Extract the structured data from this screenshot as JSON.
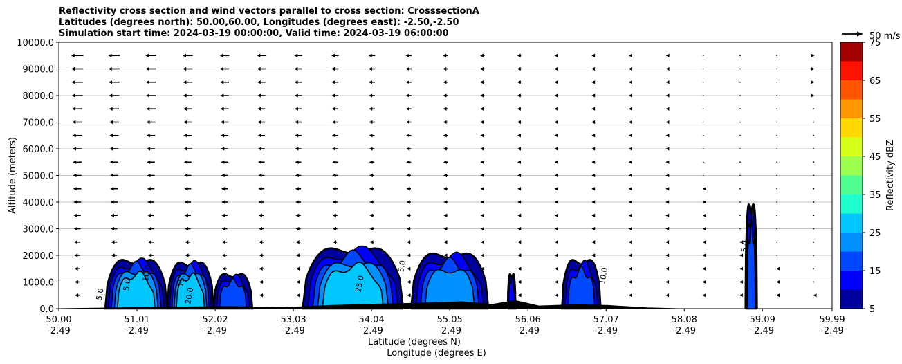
{
  "chart_data": {
    "type": "contourf",
    "title_lines": [
      "Reflectivity cross section and wind vectors parallel to cross section: CrosssectionA",
      "Latitudes (degrees north): 50.00,60.00, Longitudes (degrees east): -2.50,-2.50",
      "Simulation start time: 2024-03-19 00:00:00, Valid time: 2024-03-19 06:00:00"
    ],
    "xlabel_lat": "Latitude (degrees N)",
    "xlabel_lon": "Longitude (degrees E)",
    "ylabel": "Altitude (meters)",
    "xlim": [
      50.0,
      59.99
    ],
    "ylim": [
      0,
      10000
    ],
    "x_tick_values": [
      50.0,
      51.01,
      52.02,
      53.03,
      54.04,
      55.05,
      56.06,
      57.07,
      58.08,
      59.09,
      59.99
    ],
    "x_tick_lat_labels": [
      "50.00",
      "51.01",
      "52.02",
      "53.03",
      "54.04",
      "55.05",
      "56.06",
      "57.07",
      "58.08",
      "59.09",
      "59.99"
    ],
    "x_tick_lon_labels": [
      "-2.49",
      "-2.49",
      "-2.49",
      "-2.49",
      "-2.49",
      "-2.49",
      "-2.49",
      "-2.49",
      "-2.49",
      "-2.49",
      "-2.49"
    ],
    "y_tick_values": [
      0,
      1000,
      2000,
      3000,
      4000,
      5000,
      6000,
      7000,
      8000,
      9000,
      10000
    ],
    "y_tick_labels": [
      "0.0",
      "1000.0",
      "2000.0",
      "3000.0",
      "4000.0",
      "5000.0",
      "6000.0",
      "7000.0",
      "8000.0",
      "9000.0",
      "10000.0"
    ],
    "grid": "horizontal",
    "colorbar": {
      "label": "Reflectivity dBZ",
      "levels": [
        5,
        10,
        15,
        20,
        25,
        30,
        35,
        40,
        45,
        50,
        55,
        60,
        65,
        70,
        75
      ],
      "tick_labels": [
        "5",
        "15",
        "25",
        "35",
        "45",
        "55",
        "65",
        "75"
      ],
      "tick_values": [
        5,
        15,
        25,
        35,
        45,
        55,
        65,
        75
      ],
      "colors": [
        "#00009f",
        "#0000ff",
        "#0048ff",
        "#0090ff",
        "#00c8ff",
        "#20ffd0",
        "#50ff90",
        "#9cff50",
        "#d8ff1a",
        "#ffd900",
        "#ff9700",
        "#ff5500",
        "#ff1300",
        "#a30000"
      ]
    },
    "quiver_key": "50 m/s",
    "cells": [
      {
        "x0": 50.6,
        "x1": 51.4,
        "top": 1900,
        "max": 30
      },
      {
        "x0": 51.4,
        "x1": 52.0,
        "top": 1800,
        "max": 30
      },
      {
        "x0": 52.0,
        "x1": 52.5,
        "top": 1350,
        "max": 20
      },
      {
        "x0": 53.15,
        "x1": 54.45,
        "top": 2350,
        "max": 30
      },
      {
        "x0": 54.55,
        "x1": 55.55,
        "top": 2150,
        "max": 25
      },
      {
        "x0": 55.8,
        "x1": 55.9,
        "top": 1350,
        "max": 15
      },
      {
        "x0": 56.5,
        "x1": 57.0,
        "top": 1900,
        "max": 20
      },
      {
        "x0": 58.87,
        "x1": 59.02,
        "top": 4050,
        "max": 20
      }
    ],
    "contour_labels": [
      "5.0",
      "5.0",
      "10.0",
      "15.0",
      "20.0",
      "25.0",
      "5.0",
      "10.0",
      "5.0"
    ],
    "wind": {
      "levels": [
        500,
        1000,
        1500,
        2000,
        2500,
        3000,
        3500,
        4000,
        4500,
        5000,
        5500,
        6000,
        6500,
        7000,
        7500,
        8000,
        8500,
        9000,
        9500
      ],
      "u_surface": -6,
      "u_top": -18,
      "u_top_east": 3
    }
  }
}
